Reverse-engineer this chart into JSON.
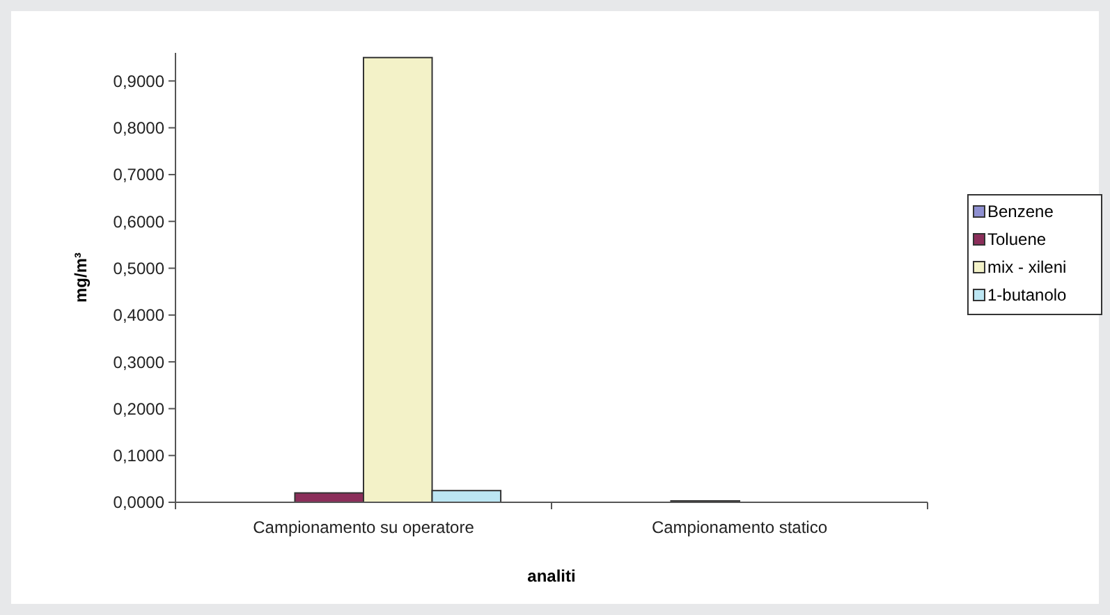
{
  "chart_data": {
    "type": "bar",
    "xlabel": "analiti",
    "ylabel": "mg/m³",
    "categories": [
      "Campionamento su operatore",
      "Campionamento statico"
    ],
    "series": [
      {
        "name": "Benzene",
        "color": "#8e8fd0",
        "values": [
          0,
          0
        ]
      },
      {
        "name": "Toluene",
        "color": "#8b2e5a",
        "values": [
          0.02,
          0.003
        ]
      },
      {
        "name": "mix - xileni",
        "color": "#f3f2c8",
        "values": [
          0.95,
          0
        ]
      },
      {
        "name": "1-butanolo",
        "color": "#bce6f3",
        "values": [
          0.025,
          0
        ]
      }
    ],
    "ylim": [
      0,
      0.96
    ],
    "yticks": [
      {
        "value": 0,
        "label": "0,0000"
      },
      {
        "value": 0.1,
        "label": "0,1000"
      },
      {
        "value": 0.2,
        "label": "0,2000"
      },
      {
        "value": 0.3,
        "label": "0,3000"
      },
      {
        "value": 0.4,
        "label": "0,4000"
      },
      {
        "value": 0.5,
        "label": "0,5000"
      },
      {
        "value": 0.6,
        "label": "0,6000"
      },
      {
        "value": 0.7,
        "label": "0,7000"
      },
      {
        "value": 0.8,
        "label": "0,8000"
      },
      {
        "value": 0.9,
        "label": "0,9000"
      }
    ],
    "grid": false,
    "legend": "right"
  }
}
